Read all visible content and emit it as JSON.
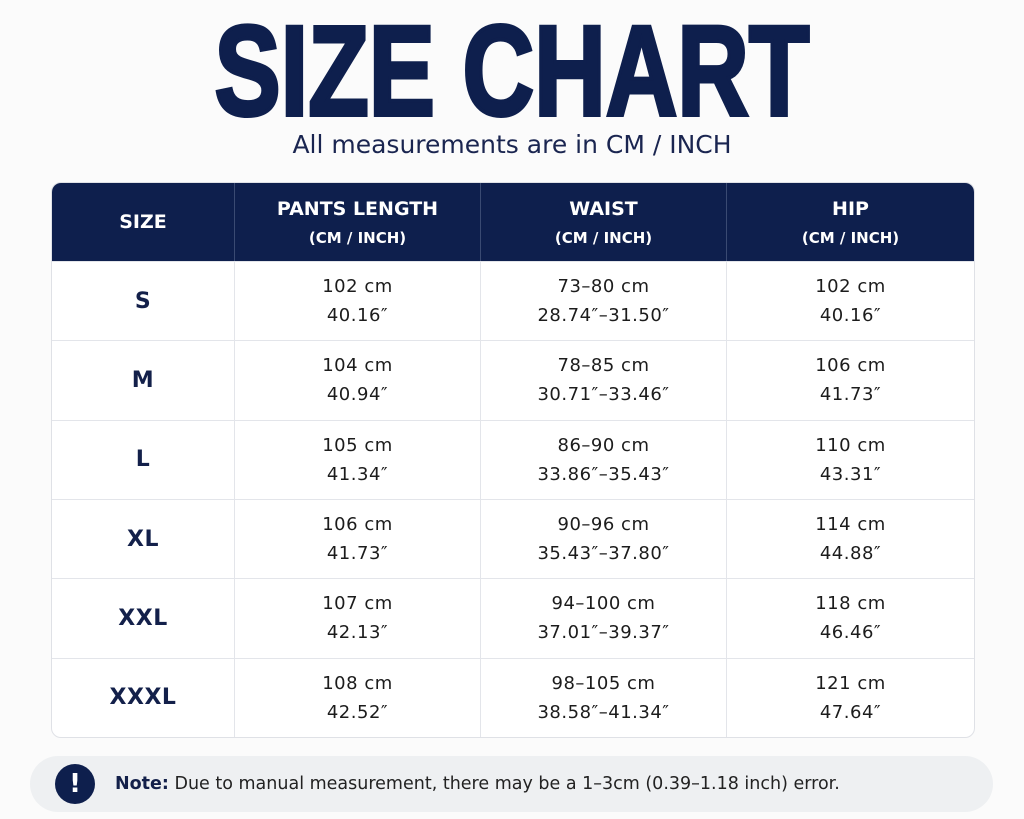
{
  "header": {
    "title": "SIZE CHART",
    "subtitle": "All measurements are in CM / INCH"
  },
  "table": {
    "columns": [
      {
        "name": "SIZE"
      },
      {
        "name": "PANTS LENGTH",
        "unit": "(CM / INCH)"
      },
      {
        "name": "WAIST",
        "unit": "(CM / INCH)"
      },
      {
        "name": "HIP",
        "unit": "(CM / INCH)"
      }
    ],
    "rows": [
      [
        "S",
        [
          "102 cm",
          "40.16″"
        ],
        [
          "73–80 cm",
          "28.74″–31.50″"
        ],
        [
          "102 cm",
          "40.16″"
        ]
      ],
      [
        "M",
        [
          "104 cm",
          "40.94″"
        ],
        [
          "78–85 cm",
          "30.71″–33.46″"
        ],
        [
          "106 cm",
          "41.73″"
        ]
      ],
      [
        "L",
        [
          "105 cm",
          "41.34″"
        ],
        [
          "86–90 cm",
          "33.86″–35.43″"
        ],
        [
          "110 cm",
          "43.31″"
        ]
      ],
      [
        "XL",
        [
          "106 cm",
          "41.73″"
        ],
        [
          "90–96 cm",
          "35.43″–37.80″"
        ],
        [
          "114 cm",
          "44.88″"
        ]
      ],
      [
        "XXL",
        [
          "107 cm",
          "42.13″"
        ],
        [
          "94–100 cm",
          "37.01″–39.37″"
        ],
        [
          "118 cm",
          "46.46″"
        ]
      ],
      [
        "XXXL",
        [
          "108 cm",
          "42.52″"
        ],
        [
          "98–105 cm",
          "38.58″–41.34″"
        ],
        [
          "121 cm",
          "47.64″"
        ]
      ]
    ]
  },
  "note": {
    "label": "Note:",
    "text": "Due to manual measurement, there may be a 1–3cm (0.39–1.18 inch) error."
  }
}
